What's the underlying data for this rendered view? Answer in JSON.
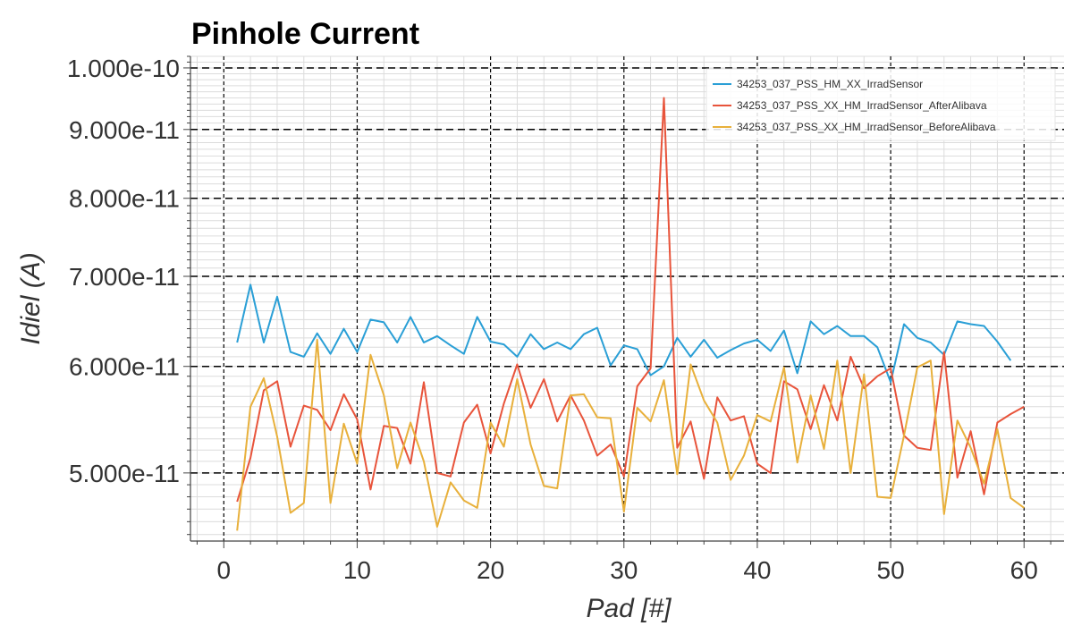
{
  "chart_data": {
    "type": "line",
    "title": "Pinhole Current",
    "xlabel": "Pad [#]",
    "ylabel": "Idiel (A)",
    "xlim": [
      -2.5,
      63
    ],
    "ylim": [
      4.45e-11,
      1.02e-10
    ],
    "yscale": "log",
    "x_ticks": [
      0,
      10,
      20,
      30,
      40,
      50,
      60
    ],
    "y_ticks": [
      5e-11,
      6e-11,
      7e-11,
      8e-11,
      9e-11,
      1e-10
    ],
    "y_tick_labels": [
      "5.000e-11",
      "6.000e-11",
      "7.000e-11",
      "8.000e-11",
      "9.000e-11",
      "1.000e-10"
    ],
    "grid": true,
    "legend_position": "top-right",
    "series": [
      {
        "name": "34253_037_PSS_HM_XX_IrradSensor",
        "color": "#2a9fd6",
        "x": [
          1,
          2,
          3,
          4,
          5,
          6,
          7,
          8,
          9,
          10,
          11,
          12,
          13,
          14,
          15,
          16,
          17,
          18,
          19,
          20,
          21,
          22,
          23,
          24,
          25,
          26,
          27,
          28,
          29,
          30,
          31,
          32,
          33,
          34,
          35,
          36,
          37,
          38,
          39,
          40,
          41,
          42,
          43,
          44,
          45,
          46,
          47,
          48,
          49,
          50,
          51,
          52,
          53,
          54,
          55,
          56,
          57,
          58,
          59
        ],
        "y": [
          6.25e-11,
          6.9e-11,
          6.25e-11,
          6.76e-11,
          6.15e-11,
          6.1e-11,
          6.35e-11,
          6.13e-11,
          6.4e-11,
          6.15e-11,
          6.5e-11,
          6.47e-11,
          6.25e-11,
          6.53e-11,
          6.25e-11,
          6.32e-11,
          6.22e-11,
          6.13e-11,
          6.53e-11,
          6.26e-11,
          6.23e-11,
          6.1e-11,
          6.34e-11,
          6.18e-11,
          6.25e-11,
          6.18e-11,
          6.34e-11,
          6.41e-11,
          6.01e-11,
          6.22e-11,
          6.18e-11,
          5.91e-11,
          6e-11,
          6.3e-11,
          6.1e-11,
          6.28e-11,
          6.09e-11,
          6.17e-11,
          6.24e-11,
          6.28e-11,
          6.16e-11,
          6.38e-11,
          5.93e-11,
          6.48e-11,
          6.34e-11,
          6.43e-11,
          6.32e-11,
          6.32e-11,
          6.2e-11,
          5.84e-11,
          6.45e-11,
          6.3e-11,
          6.25e-11,
          6.12e-11,
          6.48e-11,
          6.45e-11,
          6.43e-11,
          6.26e-11,
          6.06e-11
        ]
      },
      {
        "name": "34253_037_PSS_XX_HM_IrradSensor_AfterAlibava",
        "color": "#e8543b",
        "x": [
          1,
          2,
          3,
          4,
          5,
          6,
          7,
          8,
          9,
          10,
          11,
          12,
          13,
          14,
          15,
          16,
          17,
          18,
          19,
          20,
          21,
          22,
          23,
          24,
          25,
          26,
          27,
          28,
          29,
          30,
          31,
          32,
          33,
          34,
          35,
          36,
          37,
          38,
          39,
          40,
          41,
          42,
          43,
          44,
          45,
          46,
          47,
          48,
          49,
          50,
          51,
          52,
          53,
          54,
          55,
          56,
          57,
          58,
          59,
          60
        ],
        "y": [
          4.76e-11,
          5.13e-11,
          5.76e-11,
          5.85e-11,
          5.23e-11,
          5.61e-11,
          5.57e-11,
          5.38e-11,
          5.72e-11,
          5.48e-11,
          4.86e-11,
          5.42e-11,
          5.4e-11,
          5.08e-11,
          5.84e-11,
          5e-11,
          4.97e-11,
          5.45e-11,
          5.62e-11,
          5.17e-11,
          5.63e-11,
          6.02e-11,
          5.59e-11,
          5.87e-11,
          5.46e-11,
          5.71e-11,
          5.47e-11,
          5.15e-11,
          5.25e-11,
          4.97e-11,
          5.8e-11,
          5.98e-11,
          9.5e-11,
          5.22e-11,
          5.46e-11,
          4.95e-11,
          5.69e-11,
          5.47e-11,
          5.51e-11,
          5.08e-11,
          5e-11,
          5.85e-11,
          5.77e-11,
          5.39e-11,
          5.81e-11,
          5.47e-11,
          6.1e-11,
          5.78e-11,
          5.9e-11,
          5.98e-11,
          5.33e-11,
          5.22e-11,
          5.2e-11,
          6.15e-11,
          4.96e-11,
          5.37e-11,
          4.82e-11,
          5.45e-11,
          5.53e-11,
          5.6e-11
        ]
      },
      {
        "name": "34253_037_PSS_XX_HM_IrradSensor_BeforeAlibava",
        "color": "#e8b03b",
        "x": [
          1,
          2,
          3,
          4,
          5,
          6,
          7,
          8,
          9,
          10,
          11,
          12,
          13,
          14,
          15,
          16,
          17,
          18,
          19,
          20,
          21,
          22,
          23,
          24,
          25,
          26,
          27,
          28,
          29,
          30,
          31,
          32,
          33,
          34,
          35,
          36,
          37,
          38,
          39,
          40,
          41,
          42,
          43,
          44,
          45,
          46,
          47,
          48,
          49,
          50,
          51,
          52,
          53,
          54,
          55,
          56,
          57,
          58,
          59,
          60
        ],
        "y": [
          4.53e-11,
          5.6e-11,
          5.88e-11,
          5.32e-11,
          4.67e-11,
          4.75e-11,
          6.28e-11,
          4.75e-11,
          5.44e-11,
          5.08e-11,
          6.12e-11,
          5.71e-11,
          5.04e-11,
          5.45e-11,
          5.1e-11,
          4.56e-11,
          4.92e-11,
          4.77e-11,
          4.71e-11,
          5.45e-11,
          5.23e-11,
          5.87e-11,
          5.25e-11,
          4.89e-11,
          4.87e-11,
          5.71e-11,
          5.72e-11,
          5.5e-11,
          5.49e-11,
          4.68e-11,
          5.59e-11,
          5.46e-11,
          5.86e-11,
          4.99e-11,
          6.02e-11,
          5.66e-11,
          5.45e-11,
          4.94e-11,
          5.15e-11,
          5.52e-11,
          5.46e-11,
          5.99e-11,
          5.09e-11,
          5.71e-11,
          5.21e-11,
          6.06e-11,
          5e-11,
          5.92e-11,
          4.8e-11,
          4.79e-11,
          5.33e-11,
          5.99e-11,
          6.06e-11,
          4.66e-11,
          5.47e-11,
          5.22e-11,
          4.91e-11,
          5.39e-11,
          4.79e-11,
          4.71e-11
        ]
      }
    ]
  }
}
